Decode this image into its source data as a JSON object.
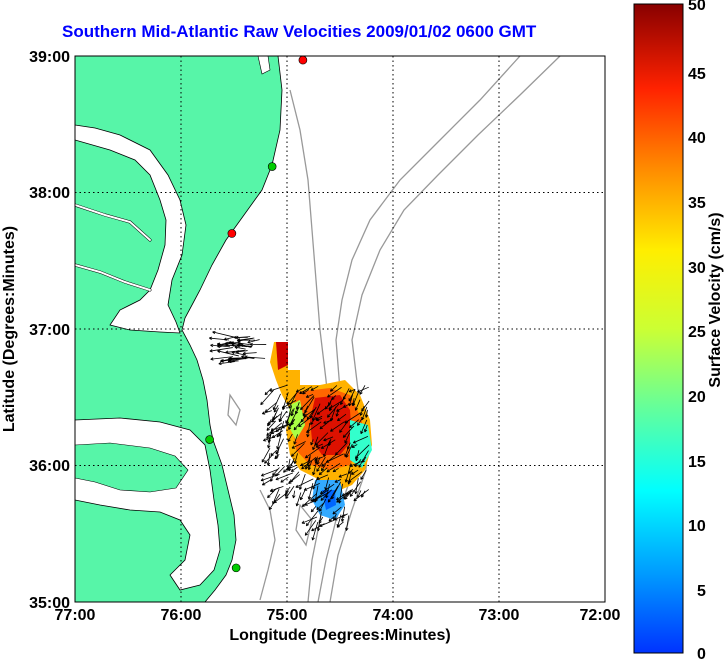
{
  "title": "Southern Mid-Atlantic Raw Velocities 2009/01/02 0600 GMT",
  "x_axis": {
    "label": "Longitude (Degrees:Minutes)",
    "ticks": [
      "77:00",
      "76:00",
      "75:00",
      "74:00",
      "73:00",
      "72:00"
    ]
  },
  "y_axis": {
    "label": "Latitude (Degrees:Minutes)",
    "ticks": [
      "39:00",
      "38:00",
      "37:00",
      "36:00",
      "35:00"
    ]
  },
  "colorbar": {
    "label": "Surface Velocity (cm/s)",
    "ticks": [
      "50",
      "45",
      "40",
      "35",
      "30",
      "25",
      "20",
      "15",
      "10",
      "5",
      "0"
    ],
    "range": [
      0,
      50
    ]
  },
  "colors": {
    "land": "#57f5a8",
    "title": "#0000ff",
    "bathymetry": "#999999",
    "station_green": "#00cc00",
    "station_red": "#ff0000"
  },
  "stations": [
    {
      "lon": -74.85,
      "lat": 38.97,
      "color": "red"
    },
    {
      "lon": -75.14,
      "lat": 38.19,
      "color": "green"
    },
    {
      "lon": -75.52,
      "lat": 37.7,
      "color": "red"
    },
    {
      "lon": -75.73,
      "lat": 36.19,
      "color": "green"
    },
    {
      "lon": -75.48,
      "lat": 35.25,
      "color": "green"
    }
  ]
}
